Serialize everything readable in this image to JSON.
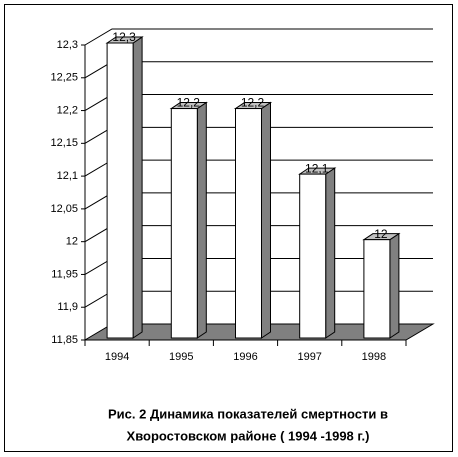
{
  "chart_data": {
    "type": "bar3d",
    "title": [
      "Рис. 2 Динамика показателей смертности в",
      "Хворостовском районе ( 1994 -1998 г.)"
    ],
    "categories": [
      "1994",
      "1995",
      "1996",
      "1997",
      "1998"
    ],
    "values": [
      12.3,
      12.2,
      12.2,
      12.1,
      12
    ],
    "value_labels": [
      "12,3",
      "12,2",
      "12,2",
      "12,1",
      "12"
    ],
    "color": "#ffffff",
    "ylim": [
      11.85,
      12.3
    ],
    "yticks": [
      {
        "value": 11.85,
        "label": "11,85"
      },
      {
        "value": 11.9,
        "label": "11,9"
      },
      {
        "value": 11.95,
        "label": "11,95"
      },
      12,
      {
        "value": 12.05,
        "label": "12,05"
      },
      {
        "value": 12.1,
        "label": "12,1"
      },
      {
        "value": 12.15,
        "label": "12,15"
      },
      {
        "value": 12.2,
        "label": "12,2"
      },
      {
        "value": 12.25,
        "label": "12,25"
      },
      {
        "value": 12.3,
        "label": "12,3"
      }
    ],
    "grid": true
  }
}
